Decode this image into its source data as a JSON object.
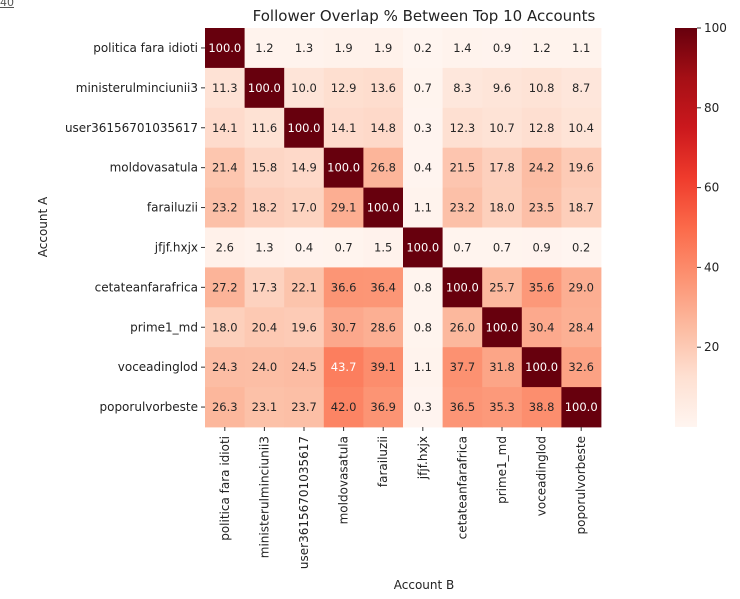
{
  "corner_mark": "40",
  "chart_data": {
    "type": "heatmap",
    "title": "Follower Overlap % Between Top 10 Accounts",
    "xlabel": "Account B",
    "ylabel": "Account A",
    "rows": [
      "politica fara idioti",
      "ministerulminciunii3",
      "user36156701035617",
      "moldovasatula",
      "farailuzii",
      "jfjf.hxjx",
      "cetateanfarafrica",
      "prime1_md",
      "voceadinglod",
      "poporulvorbeste"
    ],
    "columns": [
      "politica fara idioti",
      "ministerulminciunii3",
      "user36156701035617",
      "moldovasatula",
      "farailuzii",
      "jfjf.hxjx",
      "cetateanfarafrica",
      "prime1_md",
      "voceadinglod",
      "poporulvorbeste"
    ],
    "values": [
      [
        100.0,
        1.2,
        1.3,
        1.9,
        1.9,
        0.2,
        1.4,
        0.9,
        1.2,
        1.1
      ],
      [
        11.3,
        100.0,
        10.0,
        12.9,
        13.6,
        0.7,
        8.3,
        9.6,
        10.8,
        8.7
      ],
      [
        14.1,
        11.6,
        100.0,
        14.1,
        14.8,
        0.3,
        12.3,
        10.7,
        12.8,
        10.4
      ],
      [
        21.4,
        15.8,
        14.9,
        100.0,
        26.8,
        0.4,
        21.5,
        17.8,
        24.2,
        19.6
      ],
      [
        23.2,
        18.2,
        17.0,
        29.1,
        100.0,
        1.1,
        23.2,
        18.0,
        23.5,
        18.7
      ],
      [
        2.6,
        1.3,
        0.4,
        0.7,
        1.5,
        100.0,
        0.7,
        0.7,
        0.9,
        0.2
      ],
      [
        27.2,
        17.3,
        22.1,
        36.6,
        36.4,
        0.8,
        100.0,
        25.7,
        35.6,
        29.0
      ],
      [
        18.0,
        20.4,
        19.6,
        30.7,
        28.6,
        0.8,
        26.0,
        100.0,
        30.4,
        28.4
      ],
      [
        24.3,
        24.0,
        24.5,
        43.7,
        39.1,
        1.1,
        37.7,
        31.8,
        100.0,
        32.6
      ],
      [
        26.3,
        23.1,
        23.7,
        42.0,
        36.9,
        0.3,
        36.5,
        35.3,
        38.8,
        100.0
      ]
    ],
    "colorbar": {
      "colormap": "Reds",
      "range": [
        0,
        100
      ],
      "ticks": [
        20,
        40,
        60,
        80,
        100
      ]
    },
    "value_format": "one decimal"
  }
}
